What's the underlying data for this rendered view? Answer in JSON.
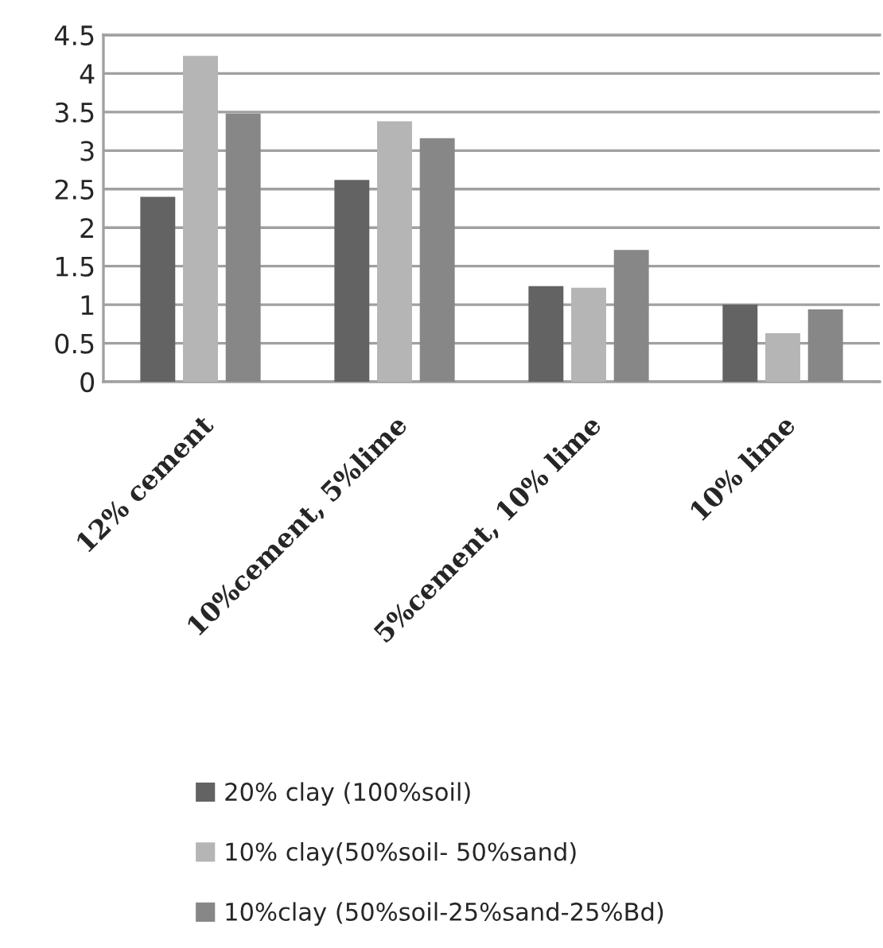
{
  "chart_data": {
    "type": "bar",
    "categories": [
      "12% cement",
      "10%cement, 5%lime",
      "5%cement, 10% lime",
      "10% lime"
    ],
    "series": [
      {
        "name": "20% clay (100%soil)",
        "color": "#636363",
        "values": [
          2.4,
          2.62,
          1.24,
          1.0
        ]
      },
      {
        "name": "10% clay(50%soil- 50%sand)",
        "color": "#b5b5b5",
        "values": [
          4.23,
          3.38,
          1.22,
          0.63
        ]
      },
      {
        "name": "10%clay (50%soil-25%sand-25%Bd)",
        "color": "#878787",
        "values": [
          3.48,
          3.16,
          1.71,
          0.94
        ]
      }
    ],
    "ylim": [
      0,
      4.5
    ],
    "yticks": [
      0,
      0.5,
      1,
      1.5,
      2,
      2.5,
      3,
      3.5,
      4,
      4.5
    ],
    "grid": "y",
    "legend": "bottom"
  }
}
